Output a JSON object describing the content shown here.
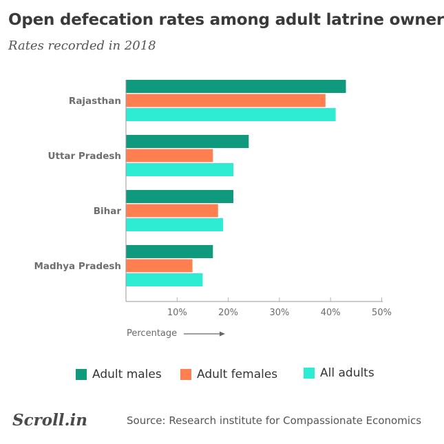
{
  "title": "Open defecation rates among adult latrine owners",
  "subtitle": "Rates recorded in 2018",
  "chart_data": {
    "type": "bar",
    "orientation": "horizontal",
    "categories": [
      "Rajasthan",
      "Uttar Pradesh",
      "Bihar",
      "Madhya Pradesh"
    ],
    "series": [
      {
        "name": "Adult males",
        "color": "#0f9a7d",
        "values": [
          43,
          24,
          21,
          17
        ]
      },
      {
        "name": "Adult females",
        "color": "#ff7f50",
        "values": [
          39,
          17,
          18,
          13
        ]
      },
      {
        "name": "All adults",
        "color": "#2eecd1",
        "values": [
          41,
          21,
          19,
          15
        ]
      }
    ],
    "xlabel": "Percentage",
    "xlim": [
      0,
      50
    ],
    "xticks": [
      10,
      20,
      30,
      40,
      50
    ],
    "xtick_labels": [
      "10%",
      "20%",
      "30%",
      "40%",
      "50%"
    ],
    "legend_position": "bottom"
  },
  "legend": [
    {
      "label": "Adult males",
      "color": "#0f9a7d"
    },
    {
      "label": "Adult females",
      "color": "#ff7f50"
    },
    {
      "label": "All adults",
      "color": "#2eecd1"
    }
  ],
  "footer": {
    "logo": "Scroll.in",
    "source": "Source: Research institute for Compassionate Economics"
  }
}
